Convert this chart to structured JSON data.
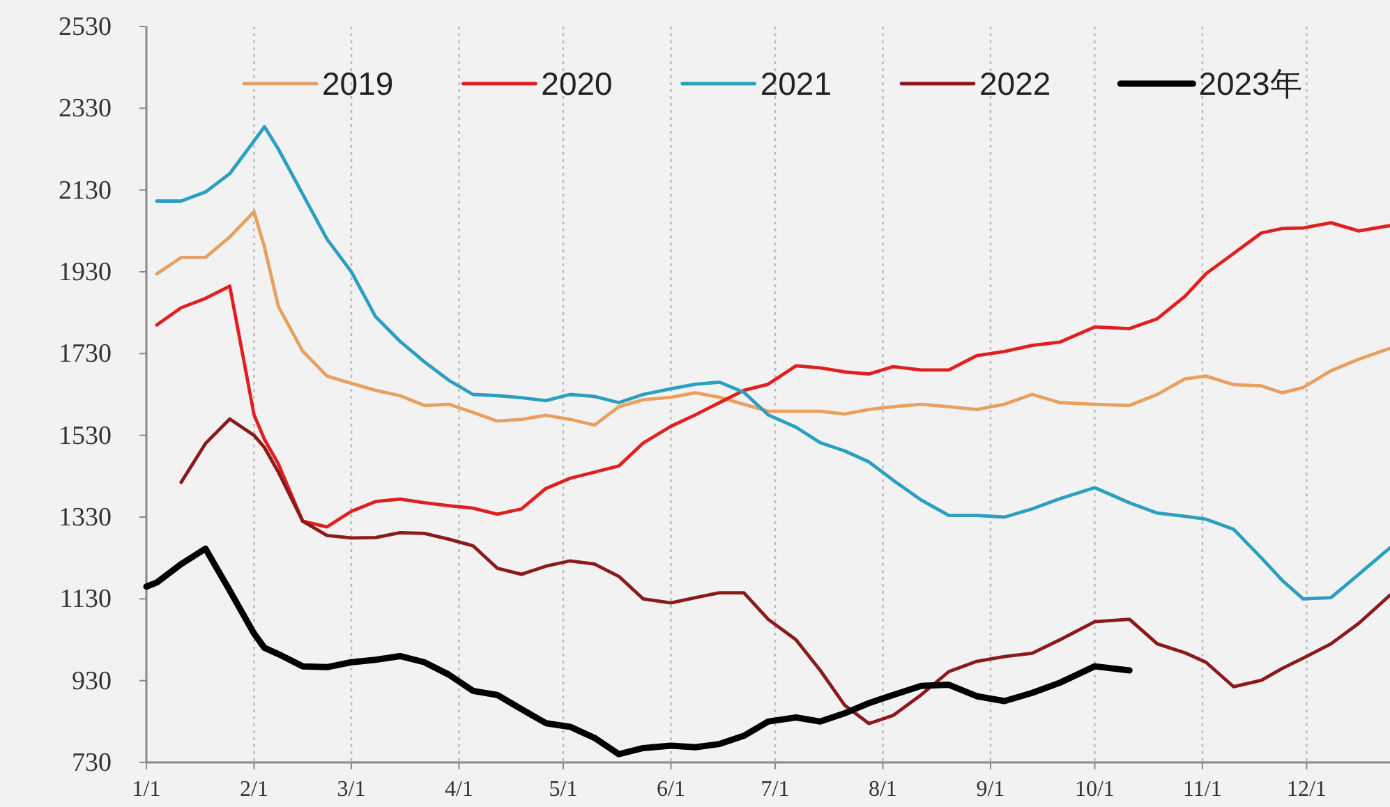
{
  "chart_data": {
    "type": "line",
    "legend": "top",
    "grid": "x",
    "line_style": "solid",
    "x": [
      "--01-01",
      "--01-04",
      "--01-11",
      "--01-18",
      "--01-25",
      "--02-01",
      "--02-04",
      "--02-08",
      "--02-15",
      "--02-22",
      "--03-01",
      "--03-08",
      "--03-15",
      "--03-22",
      "--03-29",
      "--04-05",
      "--04-12",
      "--04-19",
      "--04-26",
      "--05-03",
      "--05-10",
      "--05-17",
      "--05-24",
      "--06-01",
      "--06-08",
      "--06-15",
      "--06-22",
      "--06-29",
      "--07-07",
      "--07-14",
      "--07-21",
      "--07-28",
      "--08-04",
      "--08-12",
      "--08-20",
      "--08-28",
      "--09-05",
      "--09-13",
      "--09-21",
      "--10-01",
      "--10-11",
      "--10-19",
      "--10-27",
      "--11-02",
      "--11-10",
      "--11-18",
      "--11-24",
      "--11-30",
      "--12-08",
      "--12-16",
      "--12-25"
    ],
    "xlim": [
      "--01-01",
      "--12-25"
    ],
    "xticks": [
      {
        "value": "--01-01",
        "label": "1/1"
      },
      {
        "value": "--02-01",
        "label": "2/1"
      },
      {
        "value": "--03-01",
        "label": "3/1"
      },
      {
        "value": "--04-01",
        "label": "4/1"
      },
      {
        "value": "--05-01",
        "label": "5/1"
      },
      {
        "value": "--06-01",
        "label": "6/1"
      },
      {
        "value": "--07-01",
        "label": "7/1"
      },
      {
        "value": "--08-01",
        "label": "8/1"
      },
      {
        "value": "--09-01",
        "label": "9/1"
      },
      {
        "value": "--10-01",
        "label": "10/1"
      },
      {
        "value": "--11-01",
        "label": "11/1"
      },
      {
        "value": "--12-01",
        "label": "12/1"
      }
    ],
    "ylim": [
      730,
      2530
    ],
    "yticks": [
      730,
      930,
      1130,
      1330,
      1530,
      1730,
      1930,
      2130,
      2330,
      2530
    ],
    "series": [
      {
        "name": "2019",
        "color": "#e8a060",
        "values": [
          null,
          1925,
          1965,
          1965,
          2015,
          2077,
          1990,
          1845,
          1736,
          1675,
          1657,
          1640,
          1627,
          1603,
          1606,
          1586,
          1565,
          1569,
          1579,
          1569,
          1555,
          1600,
          1617,
          1623,
          1634,
          1623,
          1606,
          1589,
          1589,
          1589,
          1582,
          1593,
          1600,
          1606,
          1600,
          1593,
          1606,
          1630,
          1610,
          1606,
          1603,
          1630,
          1668,
          1675,
          1654,
          1651,
          1634,
          1647,
          1688,
          1716,
          1743
        ]
      },
      {
        "name": "2020",
        "color": "#e02020",
        "values": [
          null,
          1800,
          1842,
          1865,
          1895,
          1580,
          1520,
          1460,
          1320,
          1306,
          1344,
          1368,
          1374,
          1365,
          1358,
          1352,
          1337,
          1350,
          1400,
          1425,
          1440,
          1455,
          1511,
          1552,
          1580,
          1610,
          1640,
          1655,
          1700,
          1695,
          1685,
          1680,
          1698,
          1690,
          1690,
          1725,
          1735,
          1750,
          1758,
          1795,
          1791,
          1815,
          1870,
          1925,
          1975,
          2025,
          2036,
          2037,
          2050,
          2030,
          2043
        ]
      },
      {
        "name": "2021",
        "color": "#2a9fbf",
        "values": [
          null,
          2103,
          2103,
          2125,
          2170,
          2250,
          2285,
          2230,
          2120,
          2010,
          1930,
          1820,
          1760,
          1710,
          1665,
          1630,
          1627,
          1622,
          1615,
          1630,
          1625,
          1610,
          1630,
          1644,
          1655,
          1660,
          1635,
          1580,
          1550,
          1512,
          1492,
          1465,
          1420,
          1372,
          1334,
          1334,
          1330,
          1350,
          1375,
          1402,
          1365,
          1340,
          1332,
          1325,
          1300,
          1230,
          1175,
          1130,
          1133,
          1190,
          1255
        ]
      },
      {
        "name": "2022",
        "color": "#8b1a1a",
        "values": [
          null,
          null,
          1415,
          1510,
          1570,
          1530,
          1500,
          1440,
          1320,
          1285,
          1279,
          1280,
          1292,
          1290,
          1276,
          1260,
          1205,
          1190,
          1210,
          1223,
          1215,
          1185,
          1130,
          1120,
          1133,
          1145,
          1145,
          1080,
          1030,
          955,
          870,
          825,
          845,
          895,
          952,
          977,
          989,
          997,
          1030,
          1074,
          1080,
          1020,
          998,
          975,
          915,
          931,
          960,
          985,
          1020,
          1070,
          1139
        ]
      },
      {
        "name": "2023年",
        "color": "#000000",
        "values": [
          1160,
          1170,
          1215,
          1253,
          1150,
          1045,
          1010,
          995,
          965,
          963,
          975,
          981,
          990,
          975,
          945,
          905,
          895,
          860,
          826,
          817,
          790,
          750,
          765,
          771,
          767,
          775,
          795,
          830,
          840,
          830,
          850,
          875,
          895,
          917,
          920,
          892,
          880,
          900,
          925,
          965,
          955,
          null,
          null,
          null,
          null,
          null,
          null,
          null,
          null,
          null,
          null
        ]
      }
    ]
  }
}
